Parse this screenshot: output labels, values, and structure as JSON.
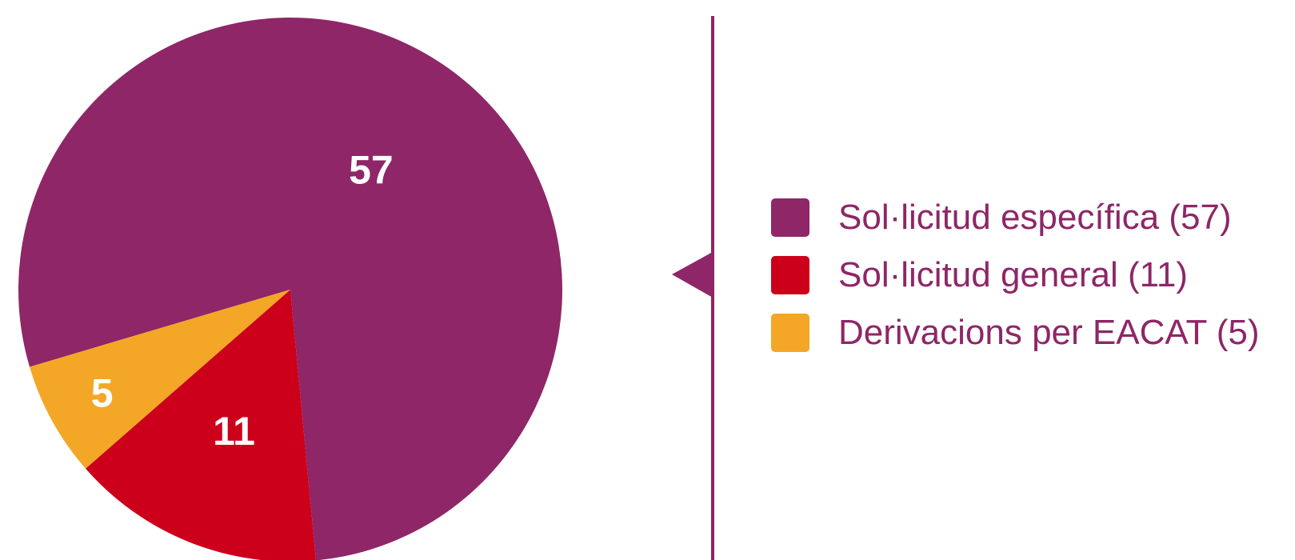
{
  "theme": {
    "label_color": "#8e2667",
    "divider_color": "#8e2667",
    "data_label_color": "#ffffff"
  },
  "chart_data": {
    "type": "pie",
    "slices": [
      {
        "name": "Sol·licitud específica",
        "value": 57,
        "color": "#8e2667",
        "label": "57",
        "legend_label": "Sol·licitud específica (57)"
      },
      {
        "name": "Sol·licitud general",
        "value": 11,
        "color": "#cd001c",
        "label": "11",
        "legend_label": "Sol·licitud general (11)"
      },
      {
        "name": "Derivacions per EACAT",
        "value": 5,
        "color": "#f4a626",
        "label": "5",
        "legend_label": "Derivacions per EACAT (5)"
      }
    ],
    "legend_position": "right"
  }
}
